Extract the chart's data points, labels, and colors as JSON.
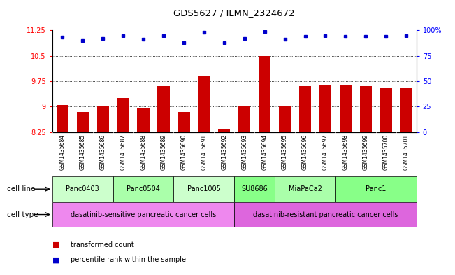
{
  "title": "GDS5627 / ILMN_2324672",
  "samples": [
    "GSM1435684",
    "GSM1435685",
    "GSM1435686",
    "GSM1435687",
    "GSM1435688",
    "GSM1435689",
    "GSM1435690",
    "GSM1435691",
    "GSM1435692",
    "GSM1435693",
    "GSM1435694",
    "GSM1435695",
    "GSM1435696",
    "GSM1435697",
    "GSM1435698",
    "GSM1435699",
    "GSM1435700",
    "GSM1435701"
  ],
  "bar_values": [
    9.05,
    8.85,
    9.0,
    9.25,
    8.97,
    9.6,
    8.85,
    9.9,
    8.35,
    9.0,
    10.5,
    9.02,
    9.6,
    9.62,
    9.65,
    9.6,
    9.55,
    9.55
  ],
  "dot_values": [
    93,
    90,
    92,
    95,
    91,
    95,
    88,
    98,
    88,
    92,
    99,
    91,
    94,
    95,
    94,
    94,
    94,
    95
  ],
  "ylim_left": [
    8.25,
    11.25
  ],
  "ylim_right": [
    0,
    100
  ],
  "yticks_left": [
    8.25,
    9.0,
    9.75,
    10.5,
    11.25
  ],
  "yticks_right": [
    0,
    25,
    50,
    75,
    100
  ],
  "ytick_labels_left": [
    "8.25",
    "9",
    "9.75",
    "10.5",
    "11.25"
  ],
  "ytick_labels_right": [
    "0",
    "25",
    "50",
    "75",
    "100%"
  ],
  "bar_color": "#cc0000",
  "dot_color": "#0000cc",
  "cell_lines": [
    {
      "label": "Panc0403",
      "start": 0,
      "end": 3,
      "color": "#ccffcc"
    },
    {
      "label": "Panc0504",
      "start": 3,
      "end": 6,
      "color": "#aaffaa"
    },
    {
      "label": "Panc1005",
      "start": 6,
      "end": 9,
      "color": "#ccffcc"
    },
    {
      "label": "SU8686",
      "start": 9,
      "end": 11,
      "color": "#88ff88"
    },
    {
      "label": "MiaPaCa2",
      "start": 11,
      "end": 14,
      "color": "#aaffaa"
    },
    {
      "label": "Panc1",
      "start": 14,
      "end": 18,
      "color": "#88ff88"
    }
  ],
  "cell_types": [
    {
      "label": "dasatinib-sensitive pancreatic cancer cells",
      "start": 0,
      "end": 9,
      "color": "#ee88ee"
    },
    {
      "label": "dasatinib-resistant pancreatic cancer cells",
      "start": 9,
      "end": 18,
      "color": "#dd66dd"
    }
  ],
  "cell_line_label": "cell line",
  "cell_type_label": "cell type",
  "legend_bar_label": "transformed count",
  "legend_dot_label": "percentile rank within the sample",
  "background_color": "#ffffff",
  "xticklabel_bg": "#cccccc",
  "plot_bg": "#ffffff"
}
